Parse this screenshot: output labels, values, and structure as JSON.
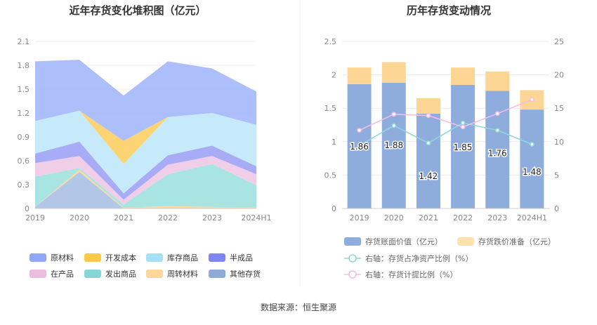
{
  "left_chart": {
    "title": "近年存货变化堆积图（亿元）",
    "legend": [
      {
        "name": "原材料",
        "color": "#8fa7f5"
      },
      {
        "name": "开发成本",
        "color": "#fcc94a"
      },
      {
        "name": "库存商品",
        "color": "#a6e0f7"
      },
      {
        "name": "半成品",
        "color": "#7f86ef"
      },
      {
        "name": "在产品",
        "color": "#edbde0"
      },
      {
        "name": "发出商品",
        "color": "#86d6d6"
      },
      {
        "name": "周转材料",
        "color": "#fdd79a"
      },
      {
        "name": "其他存货",
        "color": "#8fa9d8"
      }
    ]
  },
  "right_chart": {
    "title": "历年存货变动情况",
    "legend": [
      {
        "name": "存货账面价值（亿元）",
        "color": "#8eacdc"
      },
      {
        "name": "存货跌价准备（亿元）",
        "color": "#fde2ad"
      },
      {
        "name": "右轴：存货占净资产比例（%）",
        "color": "#8ed8d8"
      },
      {
        "name": "右轴：存货计提比例（%）",
        "color": "#f3bde6"
      }
    ]
  },
  "source": "数据来源：恒生聚源",
  "chart_data": [
    {
      "type": "area",
      "stacked": true,
      "title": "近年存货变化堆积图（亿元）",
      "categories": [
        "2019",
        "2020",
        "2021",
        "2022",
        "2023",
        "2024H1"
      ],
      "ylim": [
        0,
        2.1
      ],
      "yticks": [
        "0",
        "0.3",
        "0.6",
        "0.9",
        "1.2",
        "1.5",
        "1.8",
        "2.1"
      ],
      "series": [
        {
          "name": "其他存货",
          "color": "#aec4e6",
          "values": [
            0.02,
            0.46,
            0.0,
            0.0,
            0.0,
            0.0
          ]
        },
        {
          "name": "周转材料",
          "color": "#fdd79a",
          "values": [
            0.0,
            0.03,
            0.01,
            0.03,
            0.02,
            0.01
          ]
        },
        {
          "name": "发出商品",
          "color": "#a3e3e0",
          "values": [
            0.38,
            0.02,
            0.04,
            0.4,
            0.54,
            0.28
          ]
        },
        {
          "name": "在产品",
          "color": "#f0cbe6",
          "values": [
            0.17,
            0.15,
            0.06,
            0.12,
            0.1,
            0.14
          ]
        },
        {
          "name": "半成品",
          "color": "#a3a7f5",
          "values": [
            0.12,
            0.18,
            0.08,
            0.12,
            0.13,
            0.1
          ]
        },
        {
          "name": "库存商品",
          "color": "#c3e9f9",
          "values": [
            0.41,
            0.39,
            0.37,
            0.48,
            0.41,
            0.52
          ]
        },
        {
          "name": "开发成本",
          "color": "#fdd26b",
          "values": [
            0.0,
            0.0,
            0.29,
            0.0,
            0.0,
            0.0
          ]
        },
        {
          "name": "原材料",
          "color": "#a9bcfb",
          "values": [
            0.75,
            0.64,
            0.57,
            0.7,
            0.56,
            0.42
          ]
        }
      ]
    },
    {
      "type": "bar",
      "stacked": true,
      "title": "历年存货变动情况",
      "categories": [
        "2019",
        "2020",
        "2021",
        "2022",
        "2023",
        "2024H1"
      ],
      "ylim": [
        0,
        2.5
      ],
      "yticks": [
        "0",
        "0.5",
        "1",
        "1.5",
        "2",
        "2.5"
      ],
      "y2lim": [
        0,
        25
      ],
      "y2ticks": [
        "0",
        "5",
        "10",
        "15",
        "20",
        "25"
      ],
      "series": [
        {
          "name": "存货账面价值（亿元）",
          "color": "#8eacdc",
          "values": [
            1.86,
            1.88,
            1.42,
            1.85,
            1.76,
            1.48
          ],
          "labels": [
            "1.86",
            "1.88",
            "1.42",
            "1.85",
            "1.76",
            "1.48"
          ]
        },
        {
          "name": "存货跌价准备（亿元）",
          "color": "#fdd595",
          "values": [
            0.25,
            0.31,
            0.23,
            0.26,
            0.29,
            0.29
          ]
        }
      ],
      "lines": [
        {
          "name": "右轴：存货占净资产比例（%）",
          "color": "#8ed8d8",
          "axis": "right",
          "values": [
            9.4,
            12.4,
            9.8,
            12.8,
            11.7,
            9.6
          ]
        },
        {
          "name": "右轴：存货计提比例（%）",
          "color": "#f3bde6",
          "axis": "right",
          "values": [
            11.7,
            14.1,
            13.9,
            12.2,
            14.2,
            16.3
          ]
        }
      ]
    }
  ]
}
